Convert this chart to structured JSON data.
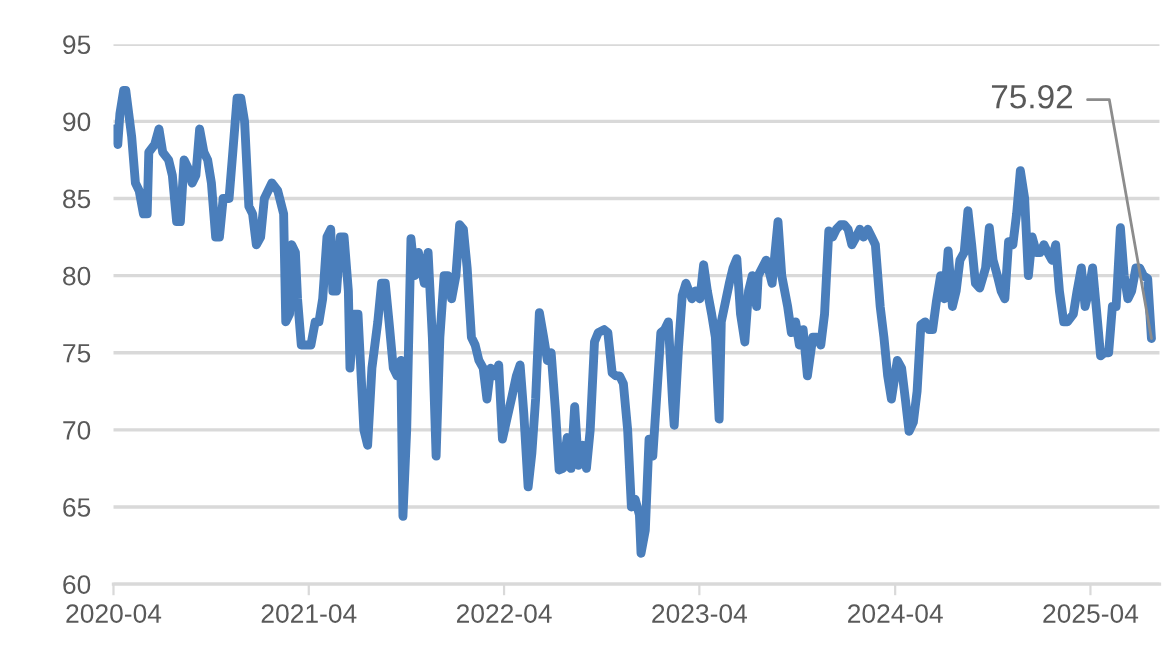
{
  "chart_data": {
    "type": "line",
    "x": [
      "2020-04-02",
      "2020-04-09",
      "2020-04-13",
      "2020-04-20",
      "2020-04-24",
      "2020-05-05",
      "2020-05-12",
      "2020-05-19",
      "2020-05-27",
      "2020-06-03",
      "2020-06-06",
      "2020-06-17",
      "2020-06-25",
      "2020-07-02",
      "2020-07-13",
      "2020-07-20",
      "2020-07-28",
      "2020-08-04",
      "2020-08-11",
      "2020-08-18",
      "2020-08-26",
      "2020-09-02",
      "2020-09-09",
      "2020-09-17",
      "2020-09-24",
      "2020-10-01",
      "2020-10-09",
      "2020-10-16",
      "2020-10-23",
      "2020-11-03",
      "2020-11-10",
      "2020-11-18",
      "2020-11-25",
      "2020-12-02",
      "2020-12-10",
      "2020-12-17",
      "2020-12-24",
      "2021-01-01",
      "2021-01-08",
      "2021-01-15",
      "2021-01-22",
      "2021-02-02",
      "2021-02-13",
      "2021-02-17",
      "2021-02-24",
      "2021-02-28",
      "2021-03-07",
      "2021-03-11",
      "2021-03-18",
      "2021-03-29",
      "2021-04-05",
      "2021-04-13",
      "2021-04-20",
      "2021-04-27",
      "2021-05-05",
      "2021-05-12",
      "2021-05-16",
      "2021-05-23",
      "2021-05-30",
      "2021-06-06",
      "2021-06-14",
      "2021-06-17",
      "2021-06-25",
      "2021-07-02",
      "2021-07-13",
      "2021-07-20",
      "2021-07-28",
      "2021-08-08",
      "2021-08-15",
      "2021-08-22",
      "2021-08-29",
      "2021-09-06",
      "2021-09-13",
      "2021-09-20",
      "2021-09-24",
      "2021-10-01",
      "2021-10-09",
      "2021-10-16",
      "2021-10-23",
      "2021-11-03",
      "2021-11-10",
      "2021-11-18",
      "2021-11-25",
      "2021-12-02",
      "2021-12-10",
      "2021-12-17",
      "2021-12-24",
      "2022-01-01",
      "2022-01-08",
      "2022-01-15",
      "2022-01-22",
      "2022-01-30",
      "2022-02-06",
      "2022-02-13",
      "2022-02-21",
      "2022-02-28",
      "2022-03-07",
      "2022-03-15",
      "2022-03-22",
      "2022-03-29",
      "2022-04-05",
      "2022-04-16",
      "2022-04-24",
      "2022-05-01",
      "2022-05-08",
      "2022-05-16",
      "2022-05-23",
      "2022-05-30",
      "2022-06-06",
      "2022-06-14",
      "2022-06-21",
      "2022-06-28",
      "2022-07-06",
      "2022-07-13",
      "2022-07-20",
      "2022-07-28",
      "2022-08-04",
      "2022-08-11",
      "2022-08-18",
      "2022-08-26",
      "2022-09-02",
      "2022-09-09",
      "2022-09-17",
      "2022-09-24",
      "2022-10-05",
      "2022-10-12",
      "2022-10-20",
      "2022-10-27",
      "2022-11-03",
      "2022-11-10",
      "2022-11-18",
      "2022-11-25",
      "2022-12-02",
      "2022-12-10",
      "2022-12-13",
      "2022-12-21",
      "2022-12-28",
      "2023-01-04",
      "2023-01-11",
      "2023-01-19",
      "2023-01-26",
      "2023-02-02",
      "2023-02-10",
      "2023-02-13",
      "2023-02-21",
      "2023-02-28",
      "2023-03-07",
      "2023-03-18",
      "2023-03-25",
      "2023-04-02",
      "2023-04-09",
      "2023-04-16",
      "2023-04-24",
      "2023-05-01",
      "2023-05-08",
      "2023-05-12",
      "2023-05-27",
      "2023-06-03",
      "2023-06-10",
      "2023-06-17",
      "2023-06-25",
      "2023-07-02",
      "2023-07-09",
      "2023-07-17",
      "2023-07-20",
      "2023-08-04",
      "2023-08-15",
      "2023-08-26",
      "2023-09-02",
      "2023-09-13",
      "2023-09-20",
      "2023-09-28",
      "2023-10-05",
      "2023-10-12",
      "2023-10-20",
      "2023-10-30",
      "2023-11-07",
      "2023-11-14",
      "2023-11-21",
      "2023-11-29",
      "2023-12-06",
      "2023-12-13",
      "2023-12-21",
      "2023-12-28",
      "2024-01-04",
      "2024-01-11",
      "2024-01-19",
      "2024-01-26",
      "2024-02-02",
      "2024-02-10",
      "2024-02-17",
      "2024-02-24",
      "2024-03-04",
      "2024-03-11",
      "2024-03-18",
      "2024-03-25",
      "2024-04-05",
      "2024-04-13",
      "2024-04-20",
      "2024-04-27",
      "2024-05-05",
      "2024-05-12",
      "2024-05-19",
      "2024-05-27",
      "2024-06-03",
      "2024-06-10",
      "2024-06-17",
      "2024-06-25",
      "2024-07-02",
      "2024-07-09",
      "2024-07-17",
      "2024-07-24",
      "2024-07-31",
      "2024-08-08",
      "2024-08-15",
      "2024-08-22",
      "2024-08-29",
      "2024-09-06",
      "2024-09-17",
      "2024-09-24",
      "2024-10-01",
      "2024-10-09",
      "2024-10-16",
      "2024-10-23",
      "2024-10-30",
      "2024-11-07",
      "2024-11-14",
      "2024-11-21",
      "2024-11-29",
      "2024-12-06",
      "2024-12-13",
      "2024-12-21",
      "2024-12-28",
      "2025-01-04",
      "2025-01-11",
      "2025-01-19",
      "2025-01-26",
      "2025-02-02",
      "2025-02-10",
      "2025-02-17",
      "2025-02-28",
      "2025-03-07",
      "2025-03-15",
      "2025-03-22",
      "2025-03-29",
      "2025-04-05",
      "2025-04-13",
      "2025-04-20",
      "2025-04-27",
      "2025-05-05",
      "2025-05-12",
      "2025-05-19",
      "2025-05-27",
      "2025-06-03",
      "2025-06-10",
      "2025-06-17",
      "2025-06-25",
      "2025-07-02",
      "2025-07-09",
      "2025-07-17",
      "2025-07-24"
    ],
    "series": [
      {
        "color": "#4a7ebb",
        "values": [
          89.5,
          88.5,
          90.5,
          92,
          92,
          89,
          86,
          85.5,
          84,
          84,
          88,
          88.5,
          89.5,
          88,
          87.5,
          86.5,
          83.5,
          83.5,
          87.5,
          87,
          86,
          86.5,
          89.5,
          88,
          87.5,
          86,
          82.5,
          82.5,
          85,
          85,
          88,
          91.5,
          91.5,
          90,
          84.5,
          84,
          82,
          82.5,
          85,
          85.5,
          86,
          85.5,
          84,
          77,
          77.5,
          82,
          81.5,
          78.5,
          75.5,
          75.5,
          75.5,
          77,
          77,
          78.5,
          82.5,
          83,
          79,
          79,
          82.5,
          82.5,
          79,
          74,
          77.5,
          77.5,
          70,
          69,
          74,
          77,
          79.5,
          79.5,
          77,
          74,
          73.5,
          74.5,
          64.4,
          70,
          82.4,
          80,
          81.5,
          79.5,
          81.5,
          76,
          68.3,
          76,
          80,
          80,
          78.5,
          80,
          83.3,
          83,
          80.5,
          76,
          75.5,
          74.5,
          74,
          72,
          74,
          73.5,
          74.2,
          69.4,
          70.5,
          72.2,
          73.5,
          74.2,
          71,
          66.3,
          68.5,
          72,
          77.6,
          76,
          74.5,
          75,
          71.3,
          67.4,
          67.5,
          69.5,
          67.5,
          71.5,
          67.7,
          69,
          67.5,
          70,
          75.7,
          76.3,
          76.5,
          76.3,
          73.7,
          73.5,
          73.5,
          73,
          70,
          65,
          65.5,
          64.5,
          62,
          63.5,
          69.4,
          68.3,
          72,
          76.3,
          76.5,
          77,
          71.8,
          70.3,
          75.3,
          78.7,
          79.5,
          78.5,
          79,
          78.5,
          80.7,
          79,
          77.5,
          76,
          70.7,
          77,
          79.5,
          80.5,
          81.1,
          77.5,
          75.7,
          79,
          80,
          78,
          80,
          81,
          79.5,
          83.5,
          80,
          78,
          76.3,
          77,
          75.5,
          76.5,
          73.5,
          76,
          76,
          75.5,
          77.5,
          82.9,
          82.5,
          83,
          83.3,
          83.3,
          83,
          82,
          82.5,
          83,
          82.5,
          83,
          82.5,
          82,
          78,
          76,
          73.5,
          72,
          74.5,
          74,
          72,
          69.9,
          70.5,
          72.5,
          76.8,
          77,
          76.5,
          76.5,
          78.3,
          80,
          78.5,
          81.6,
          78,
          79,
          81,
          81.5,
          84.2,
          82,
          79.5,
          79.2,
          80.5,
          83.1,
          81,
          80,
          79,
          78.5,
          82.2,
          82,
          84,
          86.8,
          85,
          80,
          82.5,
          81.5,
          81.5,
          82,
          81.5,
          81,
          82,
          79,
          77,
          77,
          77.5,
          79,
          80.5,
          78,
          79,
          80.5,
          77.5,
          74.8,
          75,
          75,
          78,
          78,
          83.1,
          80,
          78.5,
          79,
          80.5,
          80.5,
          80,
          79.8,
          75.92
        ]
      }
    ],
    "xlim": [
      "2020-04-01",
      "2025-08-08"
    ],
    "xticks": [
      "2020-04",
      "2021-04",
      "2022-04",
      "2023-04",
      "2024-04",
      "2025-04"
    ],
    "ylim": [
      60,
      95
    ],
    "yticks": [
      60,
      65,
      70,
      75,
      80,
      85,
      90,
      95
    ],
    "grid": "y",
    "annotations": [
      {
        "text": "75.92",
        "x": "2025-07-24",
        "y": 75.92
      }
    ]
  }
}
